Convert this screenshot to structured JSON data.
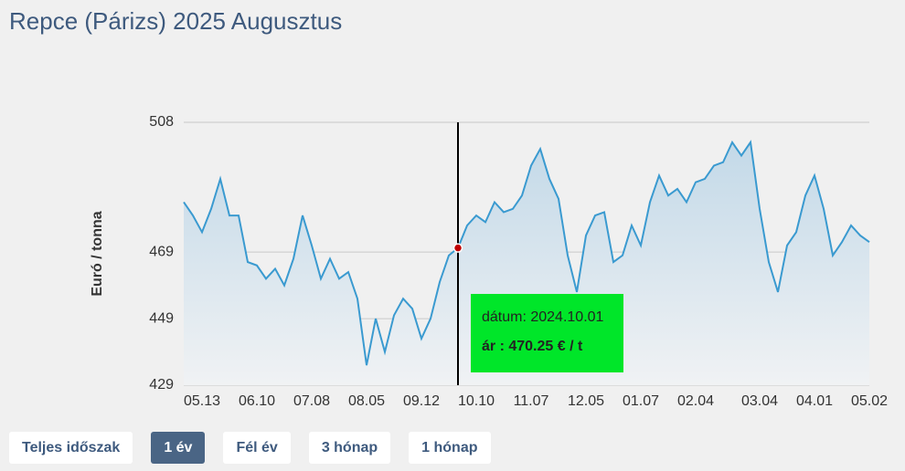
{
  "header": {
    "title": "Repce (Párizs) 2025 Augusztus"
  },
  "chart_data": {
    "type": "area",
    "ylabel": "Euró / tonna",
    "color": "#3a9ad0",
    "values": [
      484,
      480,
      475,
      482,
      491,
      480,
      480,
      466,
      465,
      461,
      464,
      459,
      467,
      480,
      471,
      461,
      467,
      461,
      463,
      455,
      435,
      449,
      439,
      450,
      455,
      452,
      443,
      449,
      460,
      468,
      470.25,
      477,
      480,
      478,
      484,
      481,
      482,
      486,
      495,
      500,
      491,
      485,
      468,
      457,
      474,
      480,
      481,
      466,
      468,
      477,
      471,
      484,
      492,
      486,
      488,
      484,
      490,
      491,
      495,
      496,
      502,
      498,
      502,
      482,
      466,
      457,
      471,
      475,
      486,
      492,
      482,
      468,
      472,
      477,
      474,
      472
    ],
    "xlim": [
      0,
      75
    ],
    "xticks": [
      {
        "value": 2,
        "label": "05.13"
      },
      {
        "value": 8,
        "label": "06.10"
      },
      {
        "value": 14,
        "label": "07.08"
      },
      {
        "value": 20,
        "label": "08.05"
      },
      {
        "value": 26,
        "label": "09.12"
      },
      {
        "value": 32,
        "label": "10.10"
      },
      {
        "value": 38,
        "label": "11.07"
      },
      {
        "value": 44,
        "label": "12.05"
      },
      {
        "value": 50,
        "label": "01.07"
      },
      {
        "value": 56,
        "label": "02.04"
      },
      {
        "value": 63,
        "label": "03.04"
      },
      {
        "value": 69,
        "label": "04.01"
      },
      {
        "value": 75,
        "label": "05.02"
      }
    ],
    "ylim": [
      429,
      508
    ],
    "yticks": [
      429,
      449,
      469,
      508
    ],
    "grid": true,
    "tooltip": {
      "date": "dátum: 2024.10.01",
      "price": "ár : 470.25 € / t"
    }
  },
  "buttons": [
    "Teljes időszak",
    "1 év",
    "Fél év",
    "3 hónap",
    "1 hónap"
  ]
}
